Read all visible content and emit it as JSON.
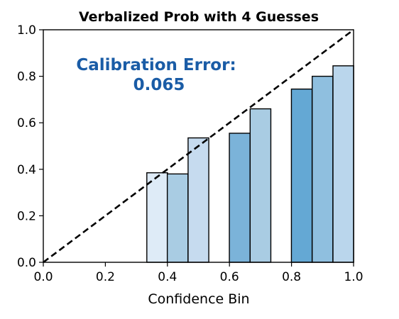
{
  "chart_data": {
    "type": "bar",
    "title": "Verbalized Prob with 4 Guesses",
    "xlabel": "Confidence Bin",
    "ylabel": "",
    "xlim": [
      0.0,
      1.0
    ],
    "ylim": [
      0.0,
      1.0
    ],
    "xticks": [
      "0.0",
      "0.2",
      "0.4",
      "0.6",
      "0.8",
      "1.0"
    ],
    "yticks": [
      "0.0",
      "0.2",
      "0.4",
      "0.6",
      "0.8",
      "1.0"
    ],
    "grid": false,
    "legend": "none",
    "bin_width": 0.0667,
    "bins": [
      {
        "x": 0.367,
        "value": 0.385,
        "color": "#deebf7"
      },
      {
        "x": 0.433,
        "value": 0.38,
        "color": "#a9cce3"
      },
      {
        "x": 0.5,
        "value": 0.535,
        "color": "#c6dbef"
      },
      {
        "x": 0.633,
        "value": 0.555,
        "color": "#7bb3d9"
      },
      {
        "x": 0.7,
        "value": 0.66,
        "color": "#a9cce3"
      },
      {
        "x": 0.833,
        "value": 0.745,
        "color": "#64a8d4"
      },
      {
        "x": 0.9,
        "value": 0.8,
        "color": "#8fbfdf"
      },
      {
        "x": 0.967,
        "value": 0.845,
        "color": "#bad6ec"
      }
    ],
    "reference_line": {
      "from": [
        0.0,
        0.0
      ],
      "to": [
        1.0,
        1.0
      ],
      "style": "dashed"
    },
    "annotation": {
      "lines": [
        "Calibration Error:",
        "0.065"
      ],
      "color": "#1a5ca6"
    }
  }
}
